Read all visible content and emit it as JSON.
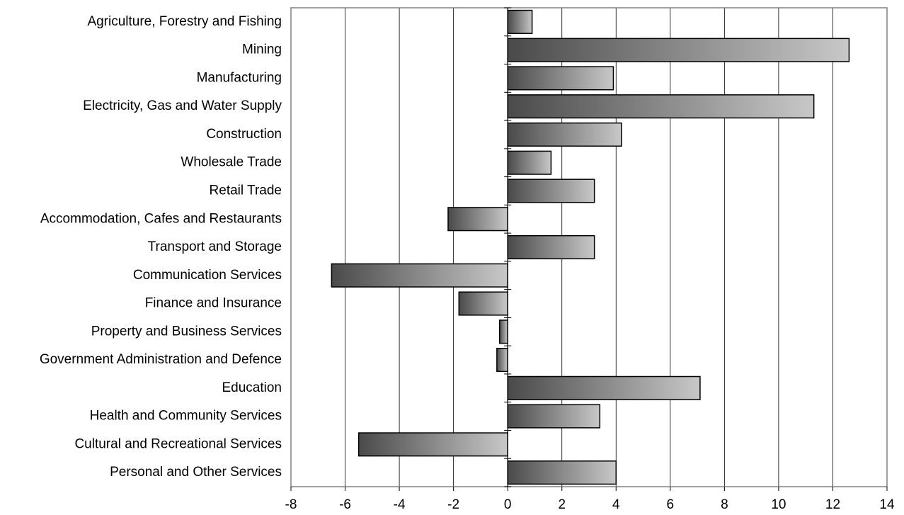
{
  "chart_data": {
    "type": "bar",
    "orientation": "horizontal",
    "categories": [
      "Agriculture, Forestry and Fishing",
      "Mining",
      "Manufacturing",
      "Electricity, Gas and Water Supply",
      "Construction",
      "Wholesale Trade",
      "Retail Trade",
      "Accommodation, Cafes and Restaurants",
      "Transport and Storage",
      "Communication Services",
      "Finance and Insurance",
      "Property and Business Services",
      "Government Administration and Defence",
      "Education",
      "Health and Community Services",
      "Cultural and Recreational Services",
      "Personal and Other Services"
    ],
    "values": [
      0.9,
      12.6,
      3.9,
      11.3,
      4.2,
      1.6,
      3.2,
      -2.2,
      3.2,
      -6.5,
      -1.8,
      -0.3,
      -0.4,
      7.1,
      3.4,
      -5.5,
      4.0
    ],
    "xlim": [
      -8,
      14
    ],
    "xticks": [
      "-8",
      "-6",
      "-4",
      "-2",
      "0",
      "2",
      "4",
      "6",
      "8",
      "10",
      "12",
      "14"
    ],
    "title": "",
    "xlabel": "",
    "ylabel": "",
    "grid": "vertical",
    "colors": {
      "bar_dark": "#4a4a4a",
      "bar_light": "#c8c8c8",
      "grid": "#000000",
      "frame": "#808080"
    }
  }
}
